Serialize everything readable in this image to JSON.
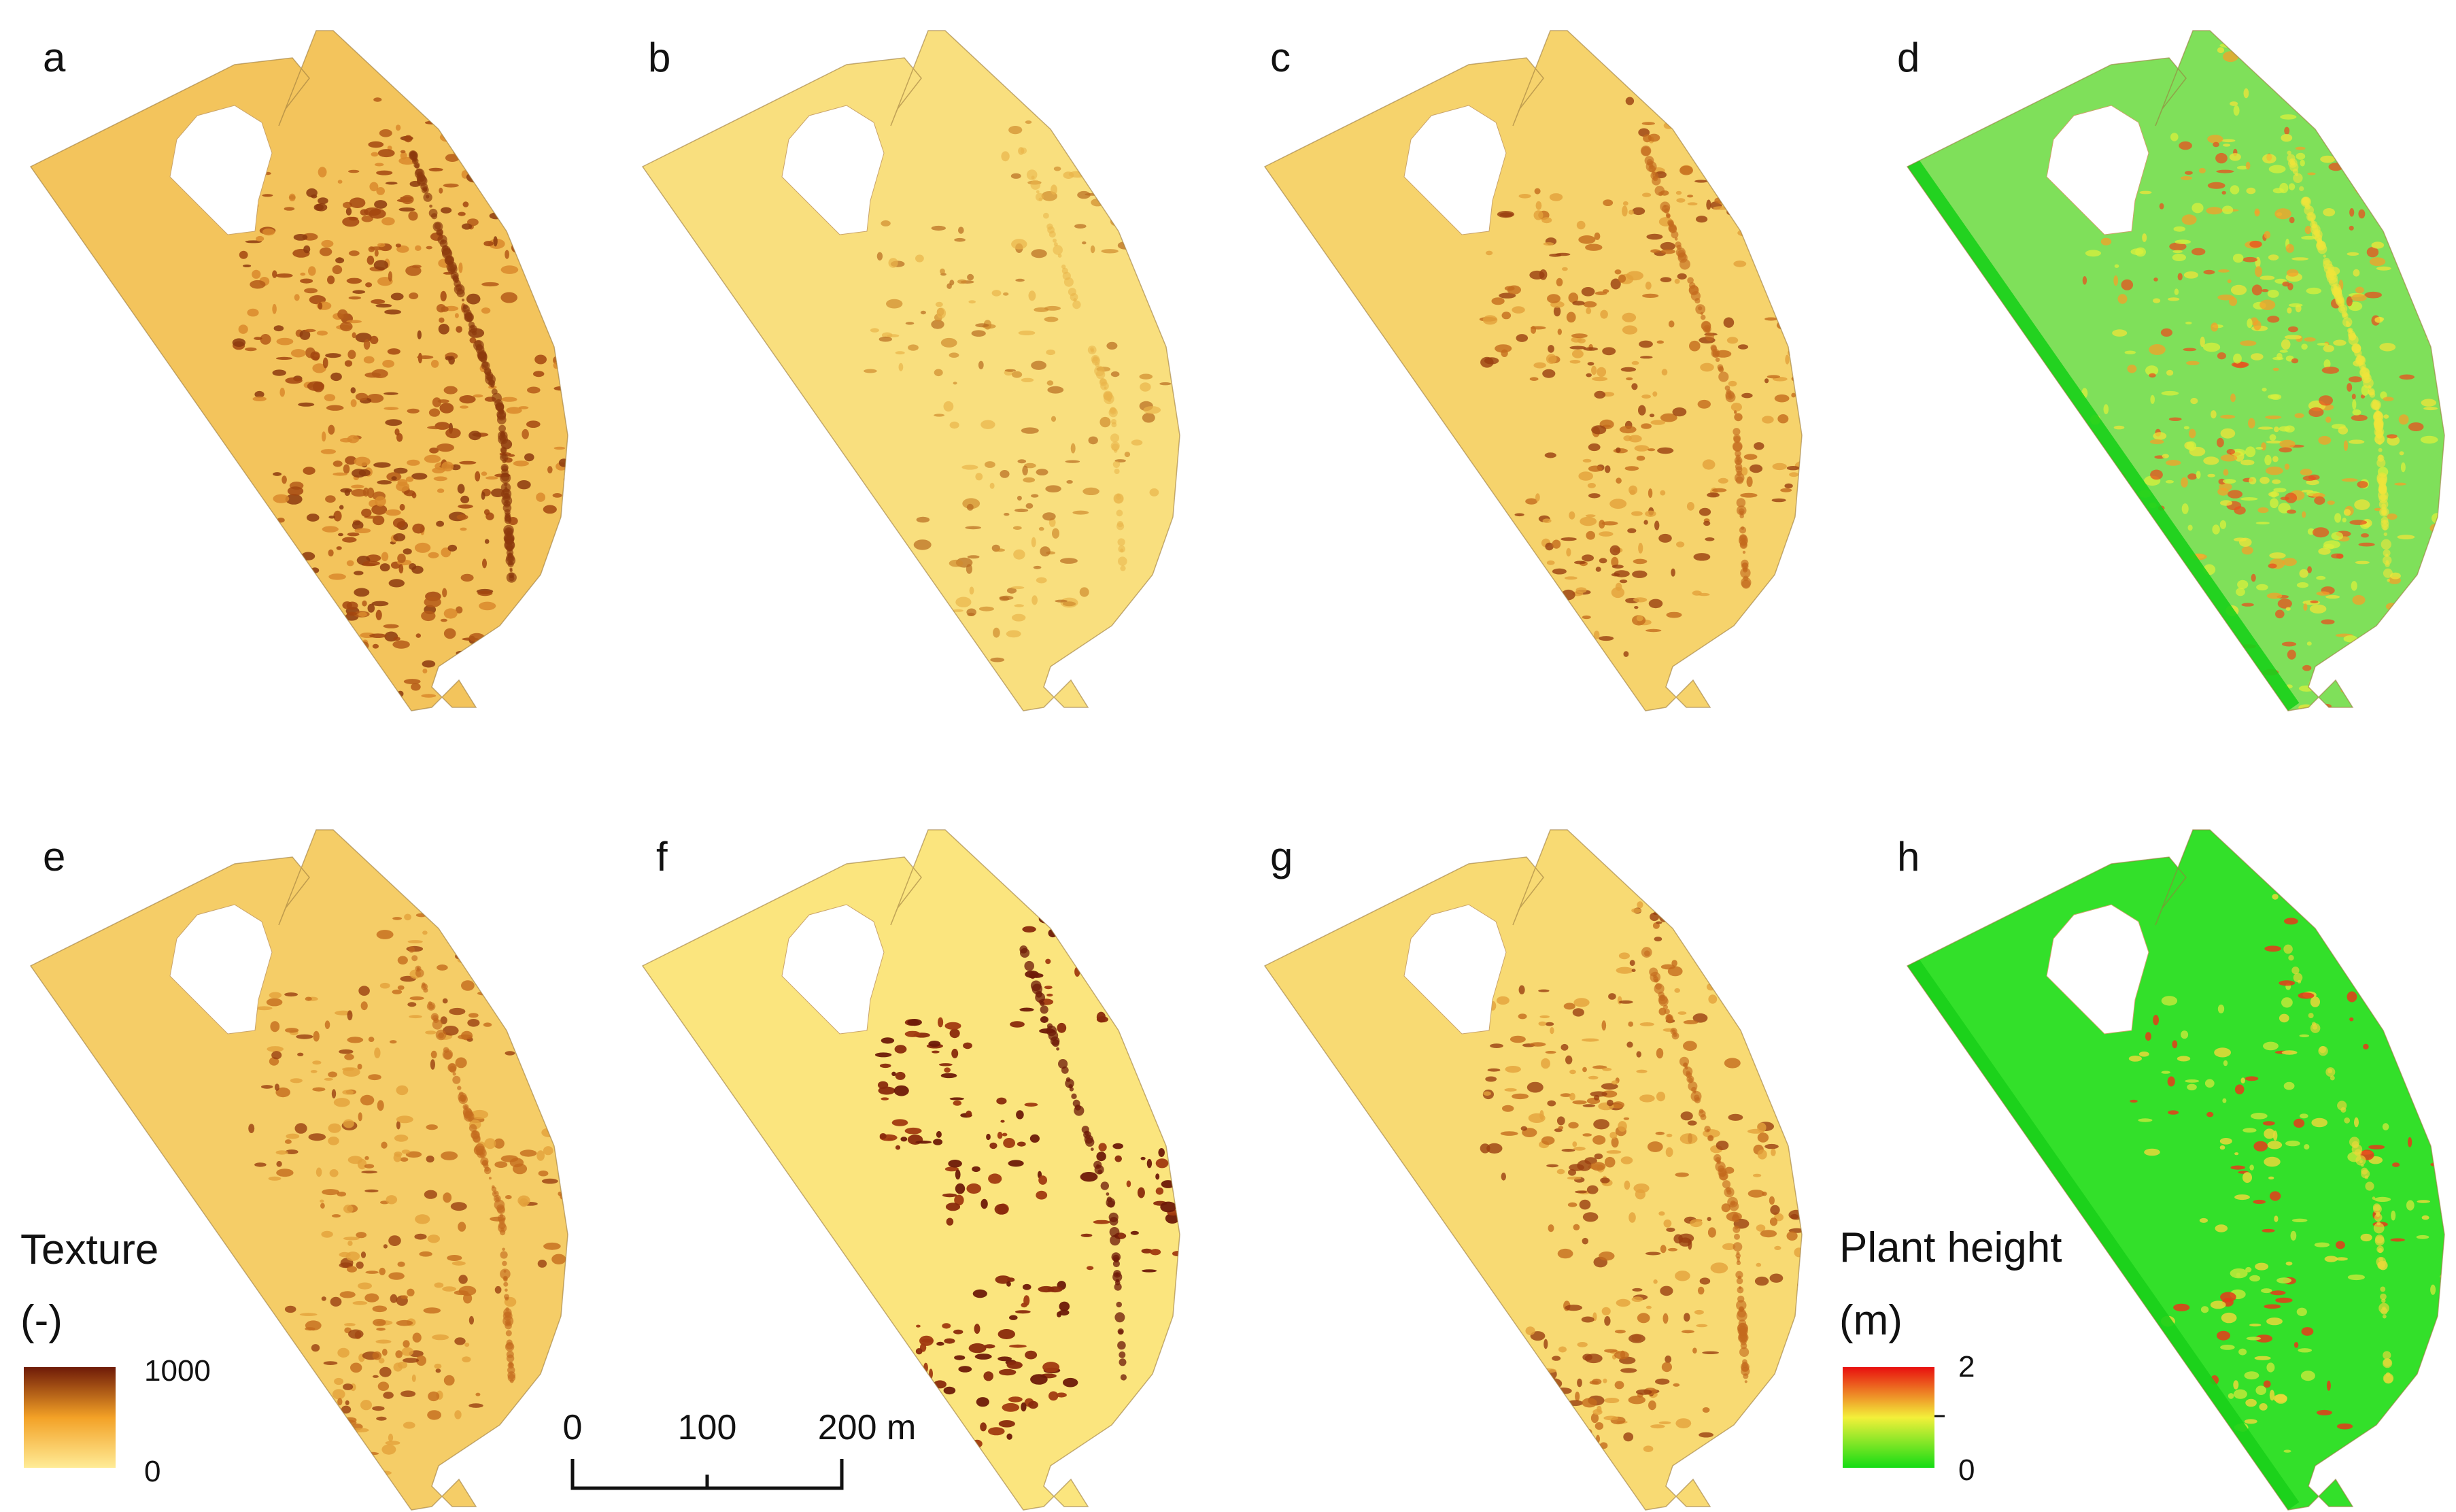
{
  "figure": {
    "panels": [
      {
        "label": "a",
        "variable": "texture",
        "base": "#f3c45c",
        "pattern": "dense-dark"
      },
      {
        "label": "b",
        "variable": "texture",
        "base": "#f9df7e",
        "pattern": "light"
      },
      {
        "label": "c",
        "variable": "texture",
        "base": "#f6d36c",
        "pattern": "medium"
      },
      {
        "label": "d",
        "variable": "plant-height",
        "base": "#7fe05a",
        "pattern": "height-high"
      },
      {
        "label": "e",
        "variable": "texture",
        "base": "#f5cd67",
        "pattern": "medium"
      },
      {
        "label": "f",
        "variable": "texture",
        "base": "#fbe57e",
        "pattern": "sparse-dark"
      },
      {
        "label": "g",
        "variable": "texture",
        "base": "#f8da73",
        "pattern": "medium"
      },
      {
        "label": "h",
        "variable": "plant-height",
        "base": "#33e02a",
        "pattern": "height-low"
      }
    ]
  },
  "legends": {
    "texture": {
      "title": "Texture",
      "unit": "(-)",
      "max_label": "1000",
      "min_label": "0",
      "colors": [
        "#ffeb96",
        "#f3a126",
        "#6e1a08"
      ]
    },
    "plant_height": {
      "title": "Plant height",
      "unit": "(m)",
      "max_label": "2",
      "min_label": "0",
      "colors": [
        "#14dc14",
        "#f3f03a",
        "#e80f0f"
      ]
    }
  },
  "scale_bar": {
    "labels": [
      "0",
      "100",
      "200 m"
    ]
  }
}
